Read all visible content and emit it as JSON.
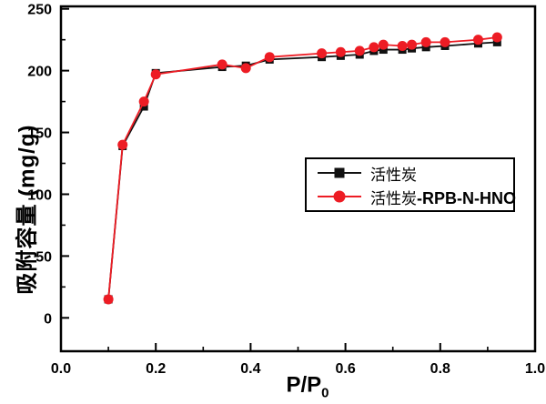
{
  "figure": {
    "ylabel": "吸附容量 (mg/g)",
    "xlabel_main": "P/P",
    "xlabel_sub": "0"
  },
  "colors": {
    "series_black": "#111111",
    "series_red": "#ed1c24",
    "axis": "#000000"
  },
  "chart_data": {
    "type": "line",
    "title": "",
    "xlabel": "P/P0",
    "ylabel": "吸附容量 (mg/g)",
    "grid": false,
    "legend_position": "inside-center-right",
    "xlim": [
      0,
      1.0
    ],
    "ylim": [
      -27,
      252
    ],
    "x_ticks": {
      "major_values": [
        0.0,
        0.2,
        0.4,
        0.6,
        0.8,
        1.0
      ],
      "major_labels": [
        "0.0",
        "0.2",
        "0.4",
        "0.6",
        "0.8",
        "1.0"
      ],
      "minor_values": [
        0.1,
        0.3,
        0.5,
        0.7,
        0.9
      ]
    },
    "y_ticks": {
      "major_values": [
        0,
        50,
        100,
        150,
        200,
        250
      ],
      "major_labels": [
        "0",
        "50",
        "100",
        "150",
        "200",
        "250"
      ],
      "minor_values": [
        25,
        75,
        125,
        175,
        225
      ]
    },
    "x": [
      0.1,
      0.13,
      0.175,
      0.2,
      0.34,
      0.39,
      0.44,
      0.55,
      0.59,
      0.63,
      0.66,
      0.68,
      0.72,
      0.74,
      0.77,
      0.81,
      0.88,
      0.92
    ],
    "series": [
      {
        "name": "活性炭",
        "name_cjk": "活性炭",
        "name_latin": "",
        "marker": "square",
        "color": "#111111",
        "values": [
          15,
          139,
          171,
          198,
          203,
          204,
          209,
          211,
          212,
          213,
          216,
          217,
          217,
          218,
          219,
          220,
          222,
          223
        ]
      },
      {
        "name": "活性炭-RPB-N-HNO",
        "name_cjk": "活性炭",
        "name_latin": "-RPB-N-HNO",
        "marker": "circle",
        "color": "#ed1c24",
        "values": [
          15,
          140,
          175,
          197,
          205,
          202,
          211,
          214,
          215,
          216,
          219,
          221,
          220,
          221,
          223,
          223,
          225,
          227
        ]
      }
    ]
  }
}
